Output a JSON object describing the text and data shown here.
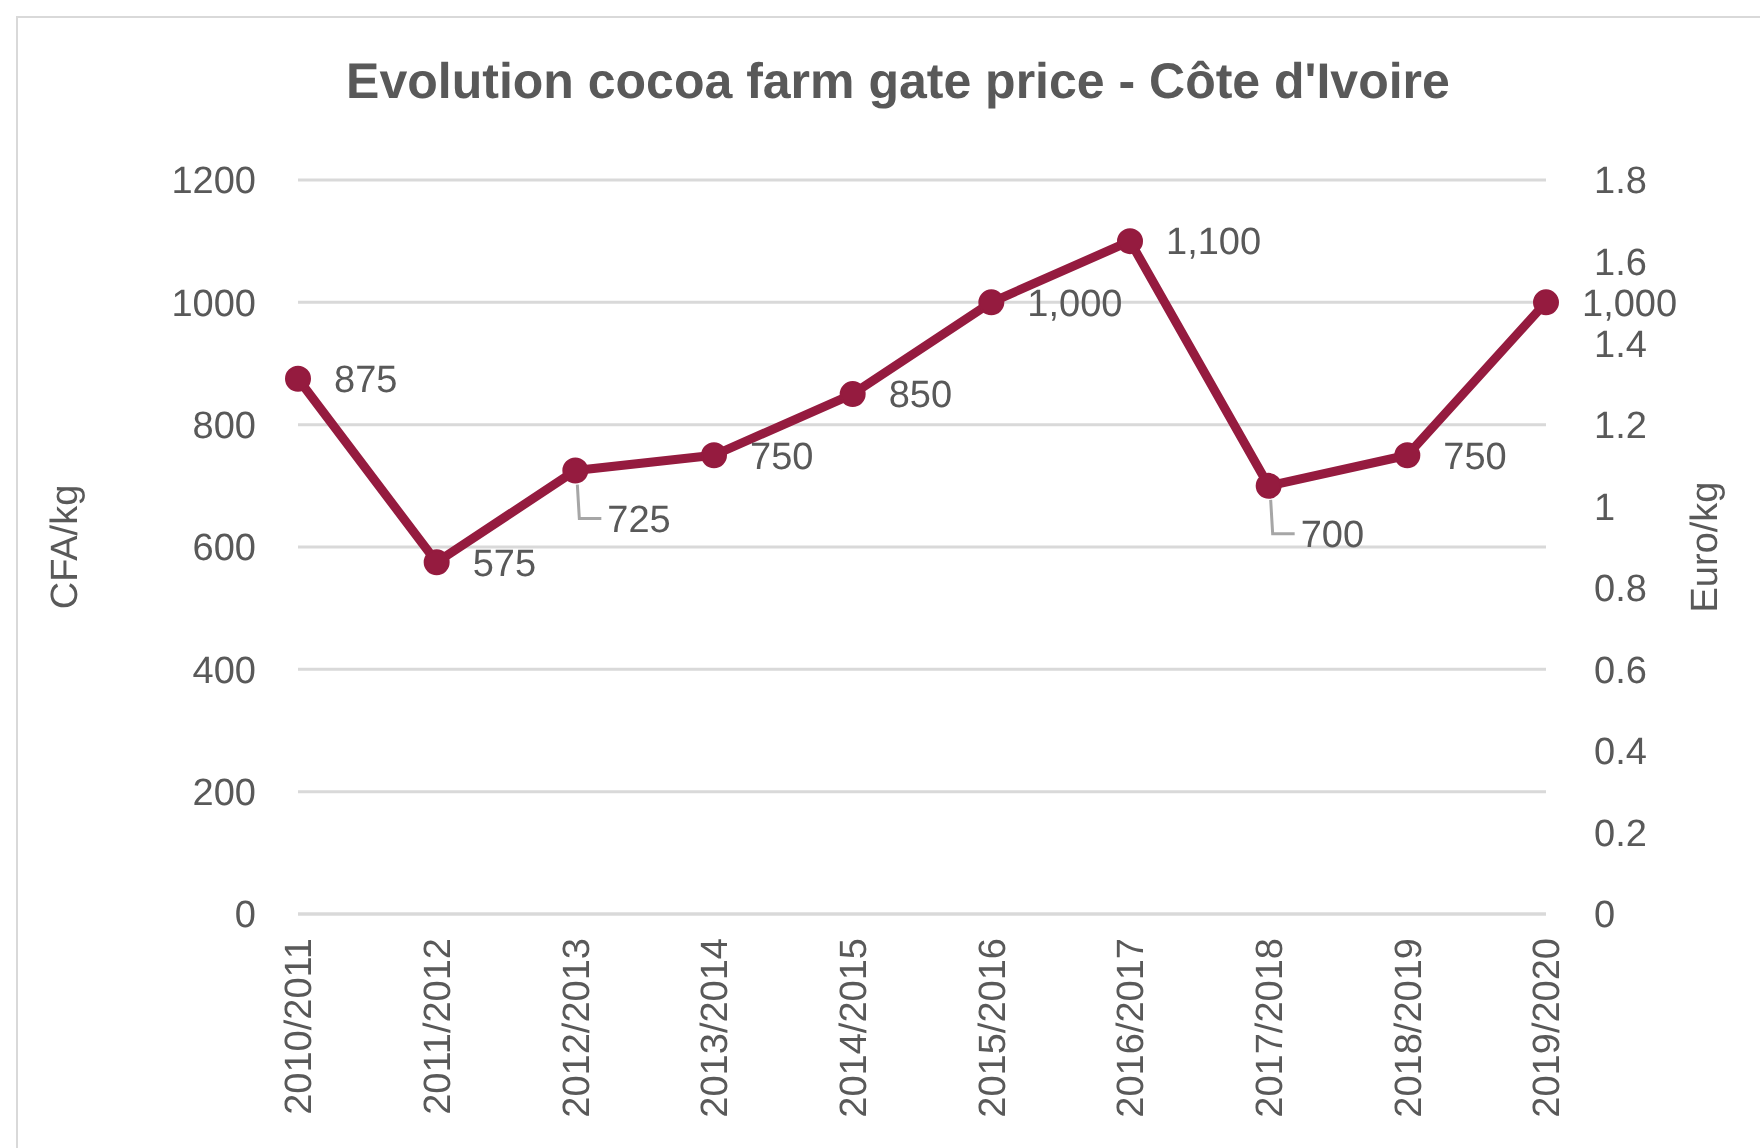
{
  "chart_data": {
    "type": "line",
    "title": "Evolution cocoa farm gate price - Côte d'Ivoire",
    "ylabel": "CFA/kg",
    "y2label": "Euro/kg",
    "categories": [
      "2010/2011",
      "2011/2012",
      "2012/2013",
      "2013/2014",
      "2014/2015",
      "2015/2016",
      "2016/2017",
      "2017/2018",
      "2018/2019",
      "2019/2020"
    ],
    "series": [
      {
        "color": "#951b3f",
        "values": [
          875,
          575,
          725,
          750,
          850,
          1000,
          1100,
          700,
          750,
          1000
        ],
        "value_labels": [
          "875",
          "575",
          "725",
          "750",
          "850",
          "1,000",
          "1,100",
          "700",
          "750",
          "1,000"
        ]
      }
    ],
    "ylim": [
      0,
      1200
    ],
    "yticks": [
      0,
      200,
      400,
      600,
      800,
      1000,
      1200
    ],
    "y2lim": [
      0,
      1.8
    ],
    "y2ticks": [
      0,
      0.2,
      0.4,
      0.6,
      0.8,
      1,
      1.2,
      1.4,
      1.6,
      1.8
    ],
    "grid": "y",
    "marker": "circle",
    "line_style": "solid",
    "legend": false
  }
}
